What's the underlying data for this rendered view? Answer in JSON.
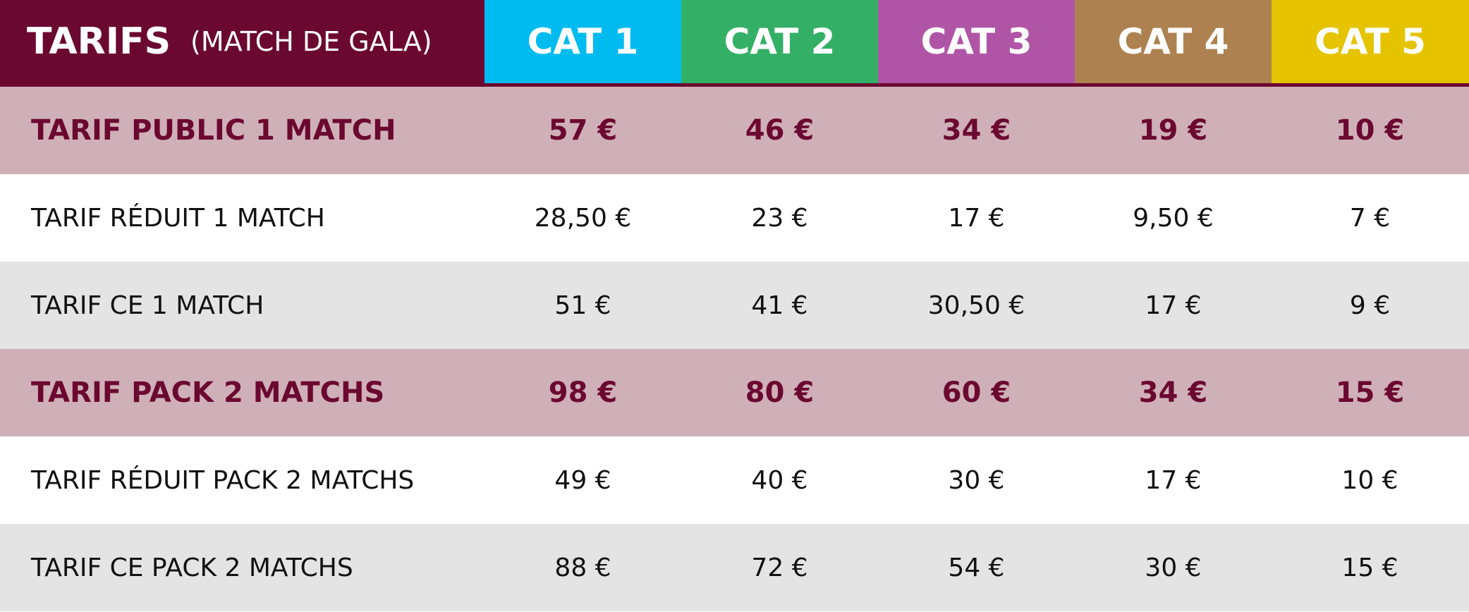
{
  "header": {
    "title": "TARIFS",
    "subtitle": "(MATCH DE GALA)",
    "categories": [
      {
        "label": "CAT 1",
        "color": "#00bbf0"
      },
      {
        "label": "CAT 2",
        "color": "#34b066"
      },
      {
        "label": "CAT 3",
        "color": "#b055a6"
      },
      {
        "label": "CAT 4",
        "color": "#ad8250"
      },
      {
        "label": "CAT 5",
        "color": "#e6c300"
      }
    ]
  },
  "colors": {
    "brand": "#6b0830",
    "highlight_row": "#d0b0b8",
    "grey_row": "#e4e4e4"
  },
  "rows": [
    {
      "label": "TARIF PUBLIC 1 MATCH",
      "style": "main",
      "values": [
        "57 €",
        "46 €",
        "34 €",
        "19 €",
        "10 €"
      ]
    },
    {
      "label": "TARIF RÉDUIT 1 MATCH",
      "style": "white",
      "values": [
        "28,50 €",
        "23 €",
        "17 €",
        "9,50 €",
        "7 €"
      ]
    },
    {
      "label": "TARIF CE 1 MATCH",
      "style": "grey",
      "values": [
        "51 €",
        "41 €",
        "30,50 €",
        "17 €",
        "9 €"
      ]
    },
    {
      "label": "TARIF PACK 2 MATCHS",
      "style": "main",
      "values": [
        "98 €",
        "80 €",
        "60 €",
        "34 €",
        "15 €"
      ]
    },
    {
      "label": "TARIF RÉDUIT PACK 2 MATCHS",
      "style": "white",
      "values": [
        "49 €",
        "40 €",
        "30 €",
        "17 €",
        "10 €"
      ]
    },
    {
      "label": "TARIF CE PACK 2 MATCHS",
      "style": "grey",
      "values": [
        "88 €",
        "72 €",
        "54 €",
        "30 €",
        "15 €"
      ]
    }
  ]
}
